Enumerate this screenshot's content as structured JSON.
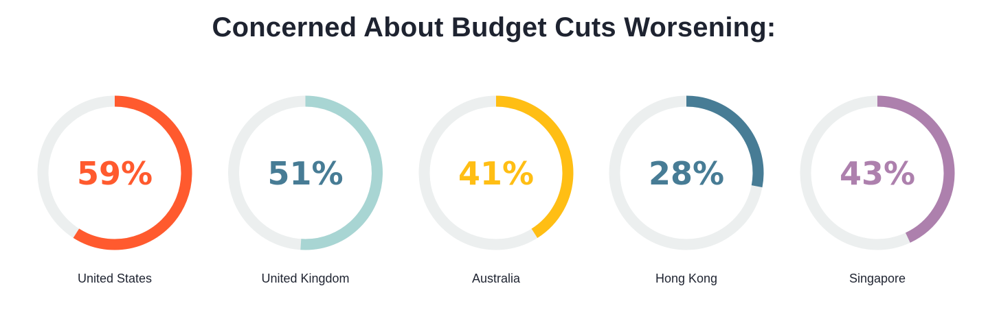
{
  "chart_data": {
    "type": "donut",
    "title": "Concerned About Budget Cuts Worsening:",
    "track_color": "#ECEFEF",
    "items": [
      {
        "label": "United States",
        "value": 59,
        "display": "59%",
        "ring_color": "#FF5A2E",
        "text_color": "#FF5A2E"
      },
      {
        "label": "United Kingdom",
        "value": 51,
        "display": "51%",
        "ring_color": "#A8D5D3",
        "text_color": "#477C95"
      },
      {
        "label": "Australia",
        "value": 41,
        "display": "41%",
        "ring_color": "#FFBE14",
        "text_color": "#FFBE14"
      },
      {
        "label": "Hong Kong",
        "value": 28,
        "display": "28%",
        "ring_color": "#477C95",
        "text_color": "#477C95"
      },
      {
        "label": "Singapore",
        "value": 43,
        "display": "43%",
        "ring_color": "#AD80AD",
        "text_color": "#AD80AD"
      }
    ]
  }
}
